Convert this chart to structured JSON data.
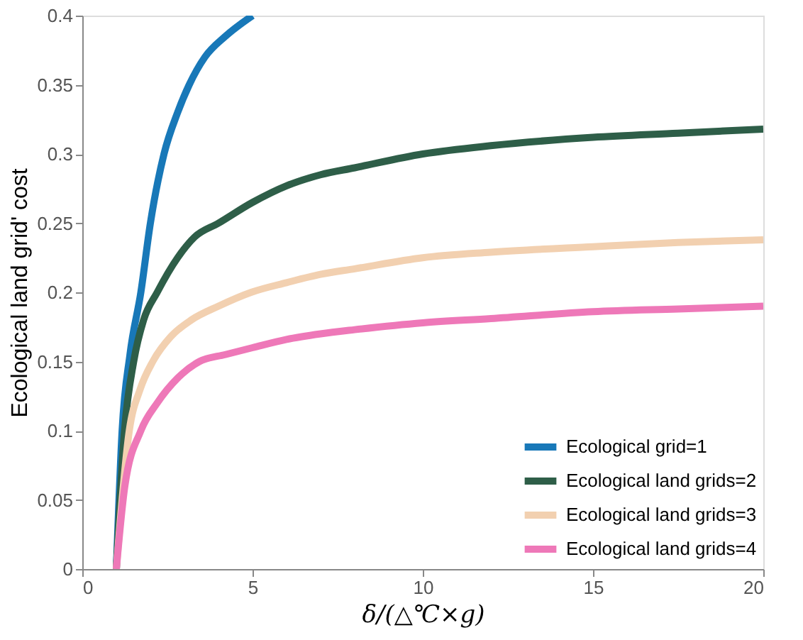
{
  "chart_data": {
    "type": "line",
    "xlabel": "δ/(△℃×g)",
    "ylabel": "Ecological land grid' cost",
    "xlim": [
      0,
      20
    ],
    "ylim": [
      0,
      0.4
    ],
    "xticks": [
      0,
      5,
      10,
      15,
      20
    ],
    "yticks": [
      0,
      0.05,
      0.1,
      0.15,
      0.2,
      0.25,
      0.3,
      0.35,
      0.4
    ],
    "grid": false,
    "legend": "bottom right",
    "marker": "none",
    "line_style": "solid",
    "series": [
      {
        "name": "Ecological grid=1",
        "color": "#1878b8",
        "x": [
          1,
          1.17,
          1.4,
          1.72,
          2.0,
          2.4,
          2.8,
          3.14,
          3.6,
          4.2,
          5.0
        ],
        "values": [
          0,
          0.1,
          0.155,
          0.2,
          0.25,
          0.3,
          0.33,
          0.35,
          0.37,
          0.385,
          0.4
        ]
      },
      {
        "name": "Ecological land grids=2",
        "color": "#2e5e48",
        "x": [
          1,
          1.24,
          1.51,
          1.8,
          2.2,
          2.8,
          3.3,
          4.0,
          5,
          6,
          7,
          8,
          10,
          12,
          15,
          17.5,
          20
        ],
        "values": [
          0,
          0.1,
          0.15,
          0.18,
          0.2,
          0.225,
          0.24,
          0.25,
          0.265,
          0.277,
          0.285,
          0.29,
          0.3,
          0.306,
          0.312,
          0.315,
          0.318
        ]
      },
      {
        "name": "Ecological land grids=3",
        "color": "#f2d0b0",
        "x": [
          1,
          1.38,
          1.7,
          2.07,
          2.6,
          3.2,
          4.0,
          4.96,
          6,
          7,
          8,
          10,
          12,
          15,
          17.5,
          20
        ],
        "values": [
          0,
          0.1,
          0.13,
          0.15,
          0.168,
          0.18,
          0.19,
          0.2,
          0.207,
          0.213,
          0.217,
          0.225,
          0.229,
          0.233,
          0.236,
          0.238
        ]
      },
      {
        "name": "Ecological land grids=4",
        "color": "#ee78b8",
        "x": [
          1,
          1.25,
          1.72,
          2.2,
          2.8,
          3.44,
          4.2,
          5,
          6,
          7,
          8,
          10,
          12,
          15,
          17.5,
          20
        ],
        "values": [
          0,
          0.06,
          0.1,
          0.12,
          0.138,
          0.15,
          0.155,
          0.16,
          0.166,
          0.17,
          0.173,
          0.178,
          0.181,
          0.186,
          0.188,
          0.19
        ]
      }
    ]
  }
}
